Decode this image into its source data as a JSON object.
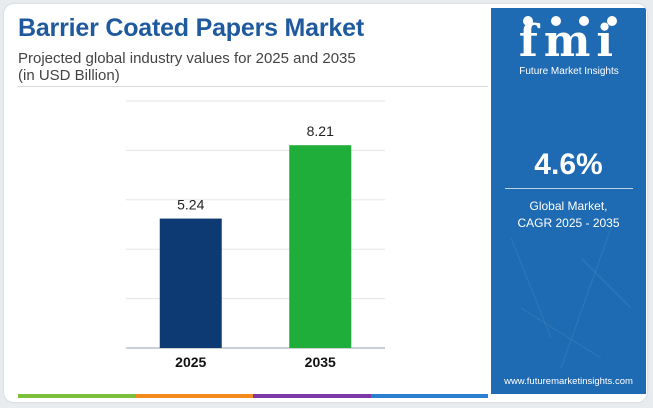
{
  "header": {
    "title": "Barrier Coated Papers Market",
    "subtitle_line1": "Projected global industry values for 2025 and 2035",
    "subtitle_line2": "(in USD Billion)"
  },
  "chart_data": {
    "type": "bar",
    "categories": [
      "2025",
      "2035"
    ],
    "values": [
      5.24,
      8.21
    ],
    "value_labels": [
      "5.24",
      "8.21"
    ],
    "bar_colors": [
      "#0d3a73",
      "#1fae3a"
    ],
    "ylim": [
      0,
      10
    ],
    "grid": true,
    "xlabel": "",
    "ylabel": ""
  },
  "sidebar": {
    "logo_mark": "fmi",
    "logo_text": "Future Market Insights",
    "cagr_value": "4.6%",
    "cagr_label_line1": "Global Market,",
    "cagr_label_line2": "CAGR 2025 - 2035",
    "website": "www.futuremarketinsights.com",
    "background_color": "#1f6bb3"
  },
  "bottom_bar_colors": [
    "#7bbf3a",
    "#f28a1e",
    "#7b3aa6",
    "#2b7fd0"
  ]
}
